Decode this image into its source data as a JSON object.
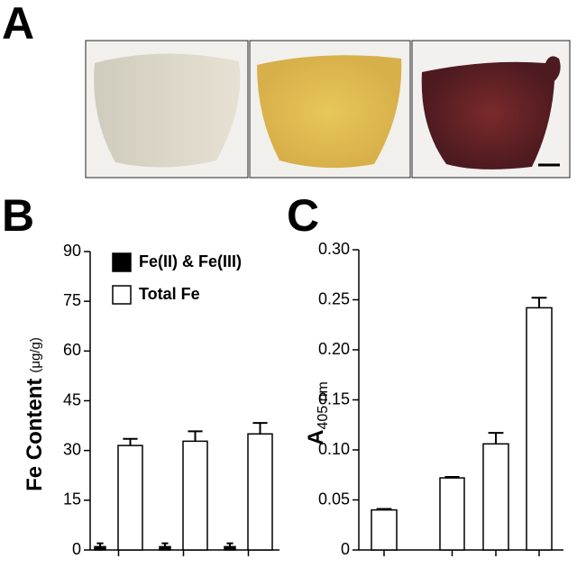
{
  "panels": {
    "a": "A",
    "b": "B",
    "c": "C"
  },
  "chart_data": [
    {
      "type": "bar",
      "ylabel": "Fe Content",
      "ylabel_unit": "(μg/g)",
      "categories": [
        null,
        null,
        null
      ],
      "series": [
        {
          "name": "Fe(II) & Fe(III)",
          "color": "#000000",
          "values": [
            1,
            1,
            1
          ],
          "errors": [
            1,
            1,
            1
          ]
        },
        {
          "name": "Total Fe",
          "color": "#ffffff",
          "values": [
            31.5,
            32.8,
            35
          ],
          "errors": [
            2,
            3,
            3.3
          ]
        }
      ],
      "ylim": [
        0,
        90
      ],
      "yticks": [
        0,
        15,
        30,
        45,
        60,
        75,
        90
      ],
      "legend": "top-left"
    },
    {
      "type": "bar",
      "ylabel": "A",
      "ylabel_sub": "405 nm",
      "categories": [
        null,
        null,
        null,
        null
      ],
      "series": [
        {
          "color": "#ffffff",
          "values": [
            0.04,
            0.072,
            0.106,
            0.242
          ],
          "errors": [
            0.001,
            0.001,
            0.011,
            0.01
          ]
        }
      ],
      "ylim": [
        0,
        0.3
      ],
      "yticks": [
        0,
        0.05,
        {
          "value": 0.1,
          "label": "0.10"
        },
        0.15,
        {
          "value": 0.2,
          "label": "0.20"
        },
        0.25,
        {
          "value": 0.3,
          "label": "0.30"
        }
      ]
    }
  ]
}
